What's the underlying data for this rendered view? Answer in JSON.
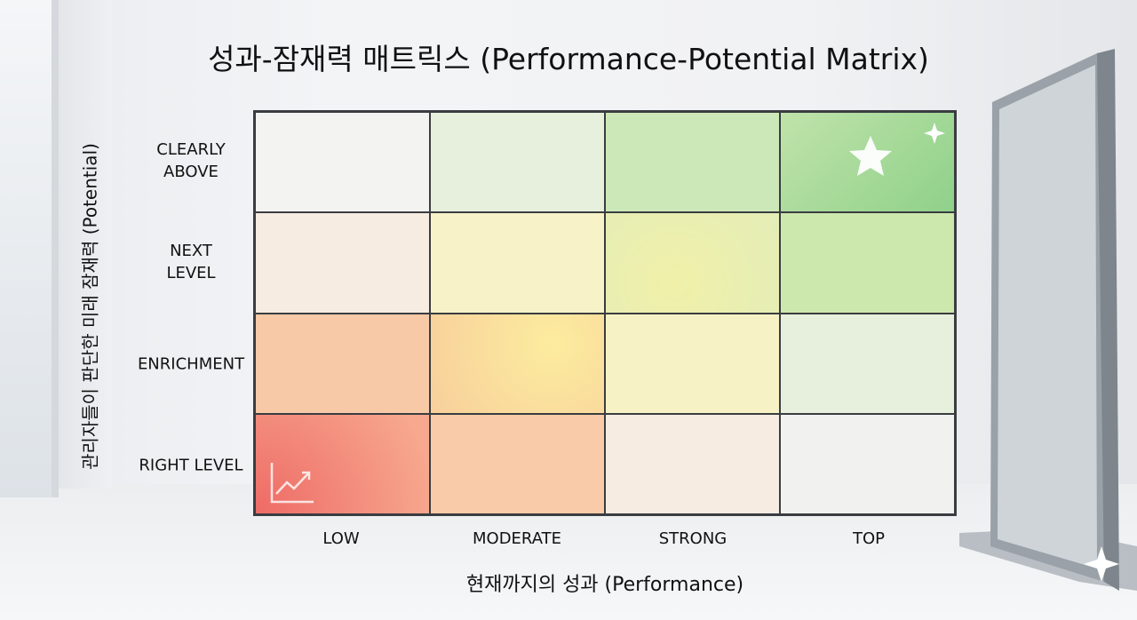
{
  "title": "성과-잠재력 매트릭스 (Performance-Potential Matrix)",
  "y_axis_label": "관리자들이 판단한 미래 잠재력 (Potential)",
  "x_axis_label": "현재까지의 성과 (Performance)",
  "rows": [
    "CLEARLY\nABOVE",
    "NEXT\nLEVEL",
    "ENRICHMENT",
    "RIGHT LEVEL"
  ],
  "columns": [
    "LOW",
    "MODERATE",
    "STRONG",
    "TOP"
  ]
}
